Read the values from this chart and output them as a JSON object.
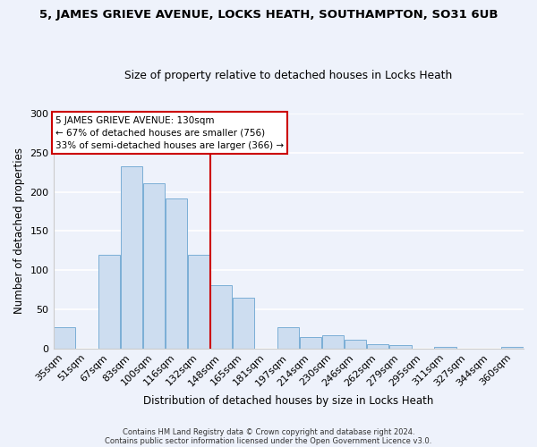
{
  "title": "5, JAMES GRIEVE AVENUE, LOCKS HEATH, SOUTHAMPTON, SO31 6UB",
  "subtitle": "Size of property relative to detached houses in Locks Heath",
  "xlabel": "Distribution of detached houses by size in Locks Heath",
  "ylabel": "Number of detached properties",
  "bar_color": "#cdddf0",
  "bar_edge_color": "#7aaed6",
  "categories": [
    "35sqm",
    "51sqm",
    "67sqm",
    "83sqm",
    "100sqm",
    "116sqm",
    "132sqm",
    "148sqm",
    "165sqm",
    "181sqm",
    "197sqm",
    "214sqm",
    "230sqm",
    "246sqm",
    "262sqm",
    "279sqm",
    "295sqm",
    "311sqm",
    "327sqm",
    "344sqm",
    "360sqm"
  ],
  "values": [
    27,
    0,
    120,
    232,
    211,
    192,
    120,
    81,
    65,
    0,
    27,
    15,
    17,
    11,
    5,
    4,
    0,
    2,
    0,
    0,
    2
  ],
  "reference_line_x": 6.5,
  "reference_line_color": "#cc0000",
  "annotation_title": "5 JAMES GRIEVE AVENUE: 130sqm",
  "annotation_line1": "← 67% of detached houses are smaller (756)",
  "annotation_line2": "33% of semi-detached houses are larger (366) →",
  "footer1": "Contains HM Land Registry data © Crown copyright and database right 2024.",
  "footer2": "Contains public sector information licensed under the Open Government Licence v3.0.",
  "ylim": [
    0,
    300
  ],
  "bg_color": "#eef2fb",
  "plot_bg_color": "#eef2fb",
  "grid_color": "#ffffff"
}
